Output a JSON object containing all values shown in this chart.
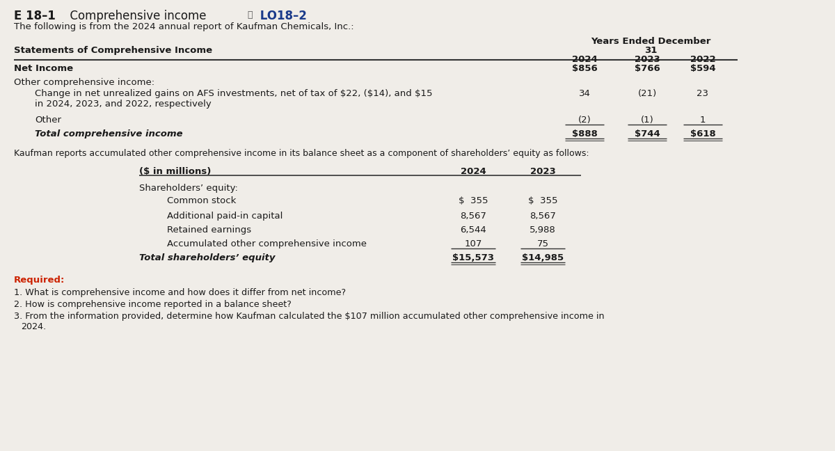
{
  "title_e": "E 18–1",
  "title_main": "  Comprehensive income",
  "title_lo": " LO18–2",
  "subtitle": "The following is from the 2024 annual report of Kaufman Chemicals, Inc.:",
  "table1_header_left": "Statements of Comprehensive Income",
  "table1_header_right1": "Years Ended December",
  "table1_header_right2": "31",
  "table1_years": [
    "2024",
    "2023",
    "2022"
  ],
  "table1_rows": [
    {
      "label": "Net Income",
      "bold": true,
      "indent": 0,
      "values": [
        "$856",
        "$766",
        "$594"
      ],
      "underline_vals": false
    },
    {
      "label": "Other comprehensive income:",
      "bold": false,
      "indent": 0,
      "values": [
        "",
        "",
        ""
      ],
      "underline_vals": false
    },
    {
      "label": "Change in net unrealized gains on AFS investments, net of tax of $22, ($14), and $15\nin 2024, 2023, and 2022, respectively",
      "bold": false,
      "indent": 1,
      "values": [
        "34",
        "(21)",
        "23"
      ],
      "underline_vals": false
    },
    {
      "label": "Other",
      "bold": false,
      "indent": 1,
      "values": [
        "(2)",
        "(1)",
        "1"
      ],
      "underline_vals": true
    },
    {
      "label": "Total comprehensive income",
      "bold": true,
      "italic": true,
      "indent": 1,
      "values": [
        "$888",
        "$744",
        "$618"
      ],
      "underline_vals": true,
      "double_underline": true
    }
  ],
  "between_text": "Kaufman reports accumulated other comprehensive income in its balance sheet as a component of shareholders’ equity as follows:",
  "table2_label": "($ in millions)",
  "table2_years": [
    "2024",
    "2023"
  ],
  "table2_sections": [
    {
      "label": "Shareholders’ equity:",
      "bold": false,
      "indent": 0,
      "values": [
        "",
        ""
      ],
      "underline_vals": false
    },
    {
      "label": "Common stock",
      "bold": false,
      "indent": 1,
      "values": [
        "$  355",
        "$  355"
      ],
      "underline_vals": false
    },
    {
      "label": "Additional paid-in capital",
      "bold": false,
      "indent": 1,
      "values": [
        "8,567",
        "8,567"
      ],
      "underline_vals": false
    },
    {
      "label": "Retained earnings",
      "bold": false,
      "indent": 1,
      "values": [
        "6,544",
        "5,988"
      ],
      "underline_vals": false
    },
    {
      "label": "Accumulated other comprehensive income",
      "bold": false,
      "indent": 1,
      "values": [
        "107",
        "75"
      ],
      "underline_vals": true
    },
    {
      "label": "Total shareholders’ equity",
      "bold": true,
      "italic": true,
      "indent": 0,
      "values": [
        "$15,573",
        "$14,985"
      ],
      "underline_vals": true,
      "double_underline": true
    }
  ],
  "required_label": "Required:",
  "required_items": [
    "1. What is comprehensive income and how does it differ from net income?",
    "2. How is comprehensive income reported in a balance sheet?",
    "3. From the information provided, determine how Kaufman calculated the $107 million accumulated other comprehensive income in\n   2024."
  ],
  "bg_color": "#f0ede8",
  "text_color": "#1a1a1a",
  "red_color": "#cc2200",
  "blue_color": "#1a3a8a",
  "line_color": "#333333"
}
